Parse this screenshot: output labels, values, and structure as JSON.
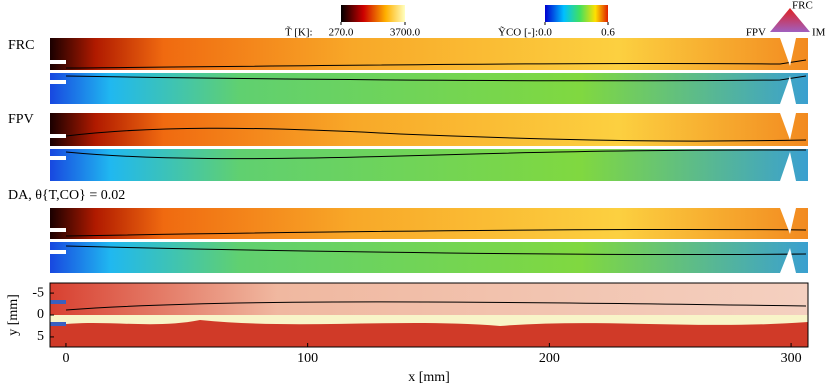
{
  "chart_data": {
    "type": "field",
    "panels": [
      {
        "label": "FRC"
      },
      {
        "label": "FPV"
      },
      {
        "label": "DA, θ{T,CO} = 0.02"
      }
    ],
    "colorbars": [
      {
        "label": "T̃ [K]:",
        "ticks": [
          {
            "value": 270,
            "label": "270.0"
          },
          {
            "value": 3700,
            "label": "3700.0"
          }
        ]
      },
      {
        "label": "ỸCO [-]:",
        "ticks": [
          {
            "value": 0,
            "label": "0.0"
          },
          0.6
        ]
      }
    ],
    "legend": [
      "FRC",
      "FPV",
      "IM"
    ],
    "xlabel": "x [mm]",
    "ylabel": "y [mm]",
    "xlim": [
      -6.6,
      307
    ],
    "ylim": [
      -7.3,
      7.3
    ],
    "xticks": [
      0,
      100,
      200,
      300
    ],
    "yticks": [
      -5,
      0,
      5
    ]
  }
}
